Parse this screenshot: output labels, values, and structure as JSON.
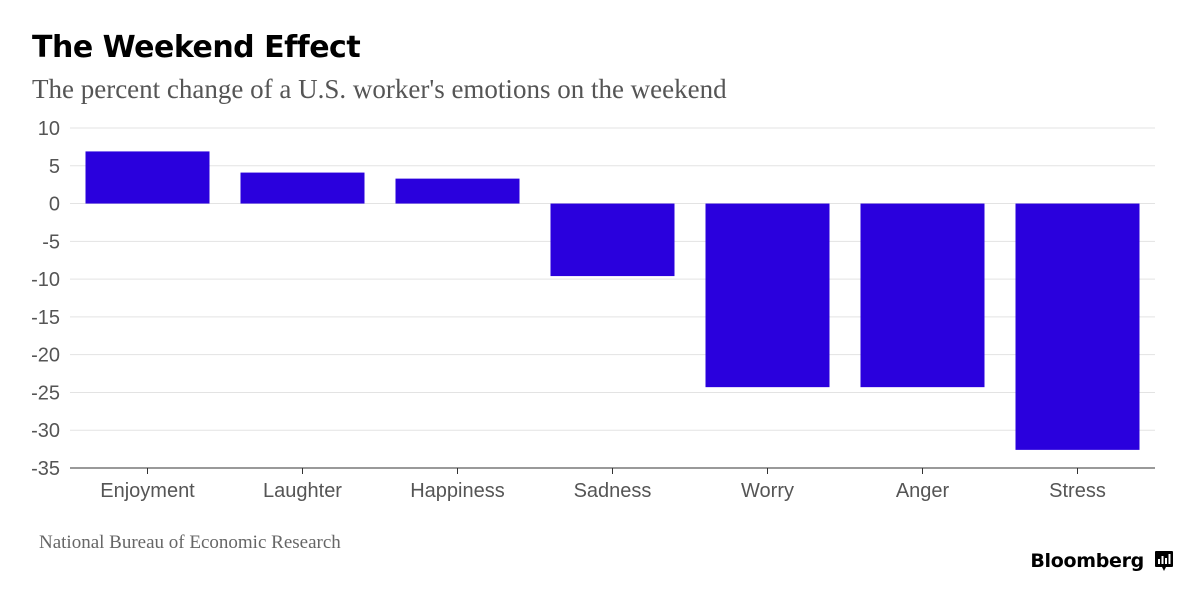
{
  "chart_data": {
    "type": "bar",
    "title": "The Weekend Effect",
    "subtitle": "The percent change of a U.S. worker's emotions on the weekend",
    "categories": [
      "Enjoyment",
      "Laughter",
      "Happiness",
      "Sadness",
      "Worry",
      "Anger",
      "Stress"
    ],
    "values": [
      6.9,
      4.1,
      3.3,
      -9.6,
      -24.3,
      -24.3,
      -32.6
    ],
    "ylim": [
      -35,
      10
    ],
    "yticks": [
      10,
      5,
      0,
      -5,
      -10,
      -15,
      -20,
      -25,
      -30,
      -35
    ],
    "xlabel": "",
    "ylabel": "",
    "grid": true,
    "bar_color": "#2a00dd"
  },
  "source": "National Bureau of Economic Research",
  "brand": {
    "name": "Bloomberg",
    "icon": "bloomberg-terminal-icon"
  }
}
